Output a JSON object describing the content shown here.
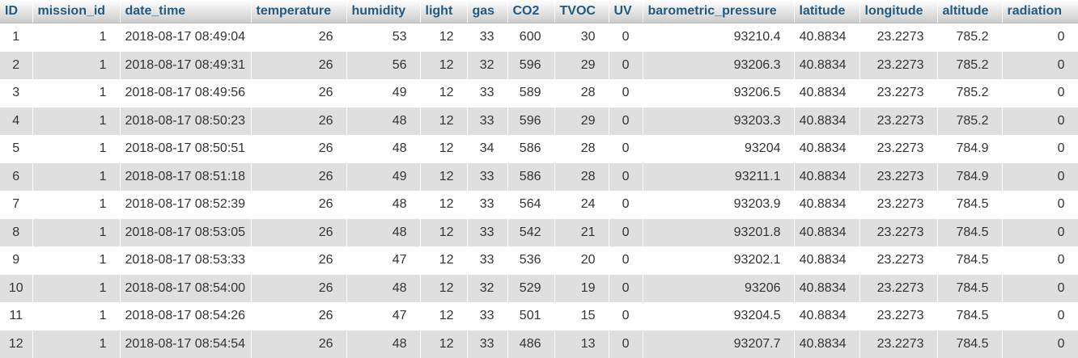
{
  "columns": [
    "ID",
    "mission_id",
    "date_time",
    "temperature",
    "humidity",
    "light",
    "gas",
    "CO2",
    "TVOC",
    "UV",
    "barometric_pressure",
    "latitude",
    "longitude",
    "altitude",
    "radiation"
  ],
  "rows": [
    [
      "1",
      "1",
      "2018-08-17 08:49:04",
      "26",
      "53",
      "12",
      "33",
      "600",
      "30",
      "0",
      "93210.4",
      "40.8834",
      "23.2273",
      "785.2",
      "0"
    ],
    [
      "2",
      "1",
      "2018-08-17 08:49:31",
      "26",
      "56",
      "12",
      "32",
      "596",
      "29",
      "0",
      "93206.3",
      "40.8834",
      "23.2273",
      "785.2",
      "0"
    ],
    [
      "3",
      "1",
      "2018-08-17 08:49:56",
      "26",
      "49",
      "12",
      "33",
      "589",
      "28",
      "0",
      "93206.5",
      "40.8834",
      "23.2273",
      "785.2",
      "0"
    ],
    [
      "4",
      "1",
      "2018-08-17 08:50:23",
      "26",
      "48",
      "12",
      "33",
      "596",
      "29",
      "0",
      "93203.3",
      "40.8834",
      "23.2273",
      "785.2",
      "0"
    ],
    [
      "5",
      "1",
      "2018-08-17 08:50:51",
      "26",
      "48",
      "12",
      "34",
      "586",
      "28",
      "0",
      "93204",
      "40.8834",
      "23.2273",
      "784.9",
      "0"
    ],
    [
      "6",
      "1",
      "2018-08-17 08:51:18",
      "26",
      "49",
      "12",
      "33",
      "586",
      "28",
      "0",
      "93211.1",
      "40.8834",
      "23.2273",
      "784.9",
      "0"
    ],
    [
      "7",
      "1",
      "2018-08-17 08:52:39",
      "26",
      "48",
      "12",
      "33",
      "564",
      "24",
      "0",
      "93203.9",
      "40.8834",
      "23.2273",
      "784.5",
      "0"
    ],
    [
      "8",
      "1",
      "2018-08-17 08:53:05",
      "26",
      "48",
      "12",
      "33",
      "542",
      "21",
      "0",
      "93201.8",
      "40.8834",
      "23.2273",
      "784.5",
      "0"
    ],
    [
      "9",
      "1",
      "2018-08-17 08:53:33",
      "26",
      "47",
      "12",
      "33",
      "536",
      "20",
      "0",
      "93202.1",
      "40.8834",
      "23.2273",
      "784.5",
      "0"
    ],
    [
      "10",
      "1",
      "2018-08-17 08:54:00",
      "26",
      "48",
      "12",
      "32",
      "529",
      "19",
      "0",
      "93206",
      "40.8834",
      "23.2273",
      "784.5",
      "0"
    ],
    [
      "11",
      "1",
      "2018-08-17 08:54:26",
      "26",
      "47",
      "12",
      "33",
      "501",
      "15",
      "0",
      "93204.5",
      "40.8834",
      "23.2273",
      "784.5",
      "0"
    ],
    [
      "12",
      "1",
      "2018-08-17 08:54:54",
      "26",
      "48",
      "12",
      "33",
      "486",
      "13",
      "0",
      "93207.7",
      "40.8834",
      "23.2273",
      "784.5",
      "0"
    ]
  ],
  "colors": {
    "header_text": "#235a81",
    "row_even": "#dfdfdf",
    "row_odd": "#ffffff",
    "cell_text": "#333333"
  }
}
